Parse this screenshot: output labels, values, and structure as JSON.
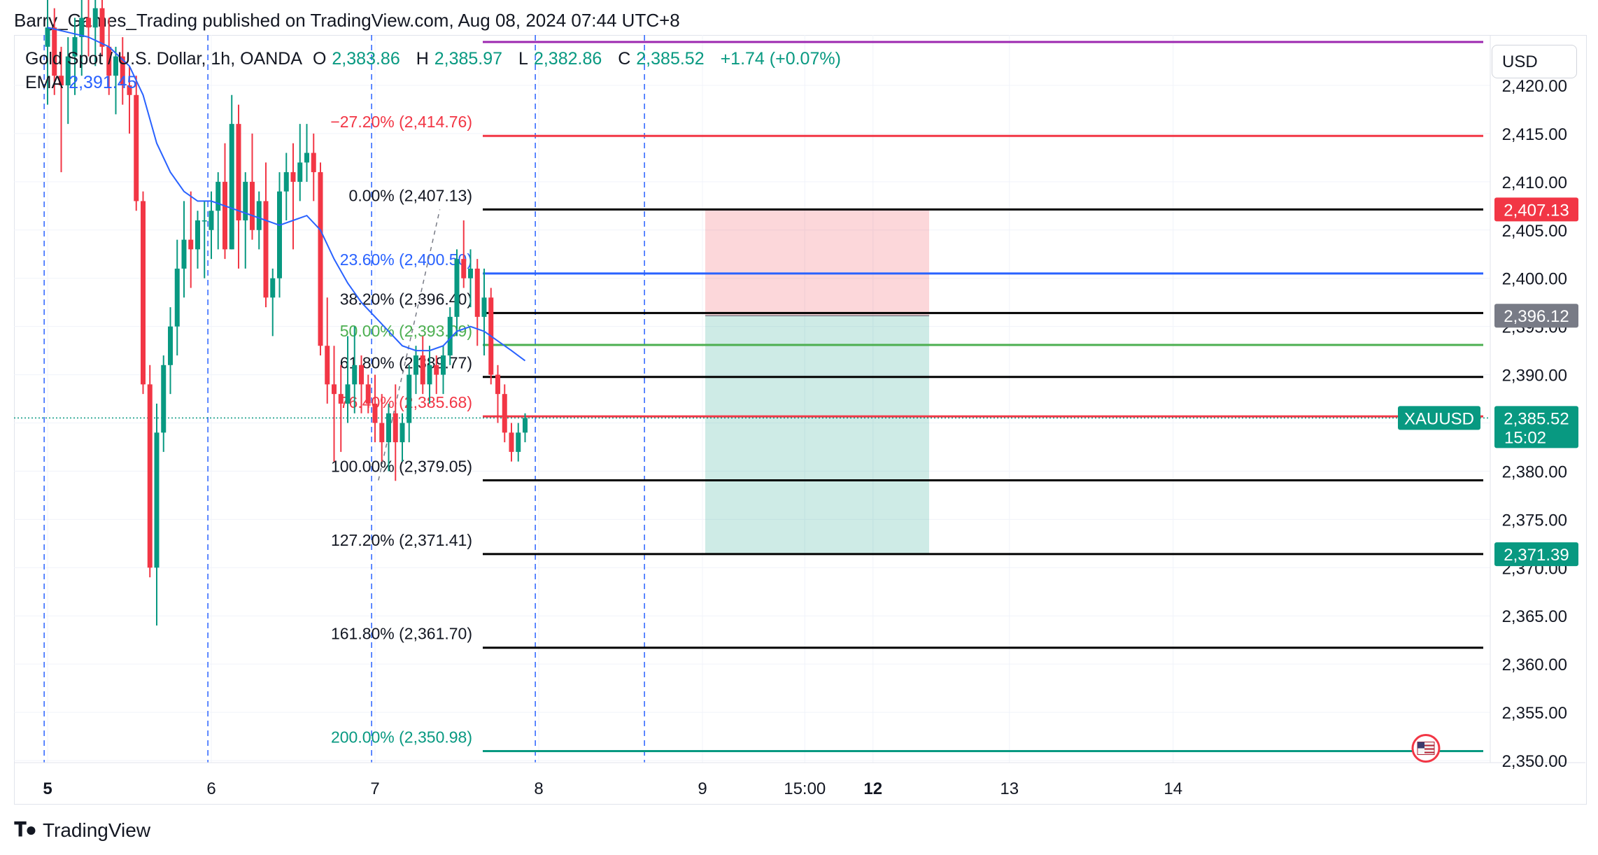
{
  "header": {
    "published_line": "Barry_Games_Trading published on TradingView.com, Aug 08, 2024 07:44 UTC+8"
  },
  "legend": {
    "symbol_line": "Gold Spot / U.S. Dollar, 1h, OANDA",
    "open_label": "O",
    "open": "2,383.86",
    "high_label": "H",
    "high": "2,385.97",
    "low_label": "L",
    "low": "2,382.86",
    "close_label": "C",
    "close": "2,385.52",
    "change": "+1.74 (+0.07%)",
    "ema_label": "EMA",
    "ema_value": "2,391.45"
  },
  "currency_button": "USD",
  "footer": {
    "logo_text": "TradingView"
  },
  "colors": {
    "up": "#089981",
    "down": "#f23645",
    "ema": "#2962ff",
    "fib_black": "#000000",
    "fib_red": "#f7525f",
    "fib_green": "#4caf50",
    "fib_blue": "#2962ff",
    "fib_teal": "#089981",
    "purple": "#9c27b0",
    "stop_zone": "#f23645",
    "target_zone": "#089981"
  },
  "chart_data": {
    "type": "candlestick",
    "symbol": "XAUUSD",
    "interval": "1h",
    "ylim": [
      2348.0,
      2424.0
    ],
    "y_ticks": [
      "2,350.00",
      "2,355.00",
      "2,360.00",
      "2,365.00",
      "2,370.00",
      "2,375.00",
      "2,380.00",
      "2,385.00",
      "2,390.00",
      "2,395.00",
      "2,400.00",
      "2,405.00",
      "2,410.00",
      "2,415.00",
      "2,420.00"
    ],
    "y_tick_values": [
      2350,
      2355,
      2360,
      2365,
      2370,
      2375,
      2380,
      2385,
      2390,
      2395,
      2400,
      2405,
      2410,
      2415,
      2420
    ],
    "x_ticks": [
      {
        "label": "5",
        "bold": true,
        "bar": 0
      },
      {
        "label": "6",
        "bold": false,
        "bar": 24
      },
      {
        "label": "7",
        "bold": false,
        "bar": 48
      },
      {
        "label": "8",
        "bold": false,
        "bar": 72
      },
      {
        "label": "9",
        "bold": false,
        "bar": 96
      },
      {
        "label": "15:00",
        "bold": false,
        "bar": 111
      },
      {
        "label": "12",
        "bold": true,
        "bar": 121
      },
      {
        "label": "13",
        "bold": false,
        "bar": 141
      },
      {
        "label": "14",
        "bold": false,
        "bar": 165
      }
    ],
    "session_lines_bar": [
      -0.5,
      23.5,
      47.5,
      71.5
    ],
    "candles": [
      [
        2424,
        2430,
        2418,
        2426
      ],
      [
        2426,
        2428,
        2419,
        2421
      ],
      [
        2421,
        2424,
        2411,
        2420
      ],
      [
        2420,
        2425,
        2416,
        2423
      ],
      [
        2423,
        2427,
        2419,
        2425
      ],
      [
        2425,
        2429,
        2421,
        2427
      ],
      [
        2427,
        2431,
        2423,
        2426
      ],
      [
        2426,
        2429,
        2422,
        2428
      ],
      [
        2428,
        2430,
        2423,
        2424
      ],
      [
        2424,
        2427,
        2419,
        2421
      ],
      [
        2421,
        2424,
        2417,
        2423
      ],
      [
        2423,
        2425,
        2418,
        2420
      ],
      [
        2420,
        2422,
        2415,
        2419
      ],
      [
        2419,
        2421,
        2407,
        2408
      ],
      [
        2408,
        2409,
        2388,
        2389
      ],
      [
        2389,
        2391,
        2369,
        2370
      ],
      [
        2370,
        2387,
        2364,
        2384
      ],
      [
        2384,
        2392,
        2382,
        2391
      ],
      [
        2391,
        2397,
        2388,
        2395
      ],
      [
        2395,
        2404,
        2392,
        2401
      ],
      [
        2401,
        2408,
        2398,
        2404
      ],
      [
        2404,
        2409,
        2399,
        2403
      ],
      [
        2403,
        2407,
        2401,
        2406
      ],
      [
        2406,
        2408,
        2400,
        2406
      ],
      [
        2405,
        2409,
        2402,
        2407
      ],
      [
        2407,
        2411,
        2403,
        2410
      ],
      [
        2410,
        2414,
        2402,
        2403
      ],
      [
        2403,
        2419,
        2403,
        2416
      ],
      [
        2416,
        2418,
        2401,
        2406
      ],
      [
        2406,
        2411,
        2401,
        2410
      ],
      [
        2410,
        2415,
        2404,
        2405
      ],
      [
        2405,
        2409,
        2403,
        2408
      ],
      [
        2408,
        2412,
        2397,
        2398
      ],
      [
        2398,
        2401,
        2394,
        2400
      ],
      [
        2400,
        2411,
        2398,
        2409
      ],
      [
        2409,
        2413,
        2406,
        2411
      ],
      [
        2411,
        2414,
        2403,
        2410
      ],
      [
        2410,
        2416,
        2408,
        2412
      ],
      [
        2412,
        2416,
        2410,
        2413
      ],
      [
        2413,
        2415,
        2408,
        2411
      ],
      [
        2411,
        2412,
        2392,
        2393
      ],
      [
        2393,
        2398,
        2387,
        2389
      ],
      [
        2389,
        2393,
        2381,
        2388
      ],
      [
        2388,
        2391,
        2382,
        2387
      ],
      [
        2387,
        2394,
        2385,
        2389
      ],
      [
        2389,
        2395,
        2386,
        2391
      ],
      [
        2391,
        2392,
        2386,
        2389
      ],
      [
        2389,
        2390,
        2386,
        2387
      ],
      [
        2387,
        2390,
        2383,
        2385
      ],
      [
        2385,
        2388,
        2381,
        2383
      ],
      [
        2383,
        2387,
        2380,
        2386
      ],
      [
        2386,
        2389,
        2379,
        2383
      ],
      [
        2383,
        2386,
        2381,
        2385
      ],
      [
        2385,
        2391,
        2383,
        2390
      ],
      [
        2390,
        2393,
        2388,
        2392
      ],
      [
        2392,
        2394,
        2388,
        2389
      ],
      [
        2389,
        2393,
        2387,
        2391
      ],
      [
        2391,
        2392,
        2388,
        2390
      ],
      [
        2390,
        2393,
        2388,
        2392
      ],
      [
        2392,
        2397,
        2391,
        2396
      ],
      [
        2396,
        2403,
        2394,
        2402
      ],
      [
        2402,
        2406,
        2399,
        2400
      ],
      [
        2400,
        2403,
        2397,
        2401
      ],
      [
        2401,
        2402,
        2393,
        2396
      ],
      [
        2396,
        2401,
        2392,
        2398
      ],
      [
        2398,
        2399,
        2389,
        2390
      ],
      [
        2390,
        2391,
        2385,
        2388
      ],
      [
        2388,
        2389,
        2383,
        2384
      ],
      [
        2384,
        2385,
        2381,
        2382
      ],
      [
        2382,
        2385,
        2381,
        2384
      ],
      [
        2384,
        2386,
        2383,
        2385.52
      ]
    ],
    "ema": [
      [
        0,
        2426
      ],
      [
        3,
        2425.5
      ],
      [
        6,
        2425
      ],
      [
        9,
        2424
      ],
      [
        12,
        2422
      ],
      [
        14,
        2419
      ],
      [
        16,
        2414
      ],
      [
        18,
        2411
      ],
      [
        20,
        2409
      ],
      [
        22,
        2408
      ],
      [
        24,
        2408
      ],
      [
        26,
        2407.5
      ],
      [
        28,
        2407
      ],
      [
        30,
        2406.5
      ],
      [
        32,
        2406
      ],
      [
        34,
        2405.5
      ],
      [
        36,
        2406
      ],
      [
        38,
        2406.5
      ],
      [
        40,
        2405
      ],
      [
        42,
        2402
      ],
      [
        44,
        2399.5
      ],
      [
        46,
        2397.5
      ],
      [
        48,
        2396
      ],
      [
        50,
        2394.5
      ],
      [
        52,
        2393
      ],
      [
        54,
        2392.5
      ],
      [
        56,
        2392.5
      ],
      [
        58,
        2393
      ],
      [
        60,
        2394.5
      ],
      [
        62,
        2395
      ],
      [
        64,
        2394.5
      ],
      [
        66,
        2393.5
      ],
      [
        68,
        2392.5
      ],
      [
        70,
        2391.45
      ]
    ],
    "fib_levels": [
      {
        "label": "−27.20% (2,414.76)",
        "value": 2414.76,
        "color": "#f23645",
        "label_color": "#f23645"
      },
      {
        "label": "0.00% (2,407.13)",
        "value": 2407.13,
        "color": "#000000",
        "label_color": "#131722"
      },
      {
        "label": "23.60% (2,400.50)",
        "value": 2400.5,
        "color": "#2962ff",
        "label_color": "#2962ff"
      },
      {
        "label": "38.20% (2,396.40)",
        "value": 2396.4,
        "color": "#000000",
        "label_color": "#131722"
      },
      {
        "label": "50.00% (2,393.09)",
        "value": 2393.09,
        "color": "#4caf50",
        "label_color": "#4caf50"
      },
      {
        "label": "61.80% (2,389.77)",
        "value": 2389.77,
        "color": "#000000",
        "label_color": "#131722"
      },
      {
        "label": "76.40% (2,385.68)",
        "value": 2385.68,
        "color": "#f23645",
        "label_color": "#f23645"
      },
      {
        "label": "100.00% (2,379.05)",
        "value": 2379.05,
        "color": "#000000",
        "label_color": "#131722"
      },
      {
        "label": "127.20% (2,371.41)",
        "value": 2371.41,
        "color": "#000000",
        "label_color": "#131722"
      },
      {
        "label": "161.80% (2,361.70)",
        "value": 2361.7,
        "color": "#000000",
        "label_color": "#131722"
      },
      {
        "label": "200.00% (2,350.98)",
        "value": 2350.98,
        "color": "#089981",
        "label_color": "#089981"
      }
    ],
    "top_line_value": 2424.0,
    "position": {
      "entry": 2396.12,
      "stop": 2407.13,
      "target": 2371.39,
      "bar_start": 72.5,
      "bar_end": 108.5
    },
    "price_badges": [
      {
        "text": "2,407.13",
        "value": 2407.13,
        "color": "#f23645"
      },
      {
        "text": "2,396.12",
        "value": 2396.12,
        "color": "#787b86"
      },
      {
        "text": "2,371.39",
        "value": 2371.39,
        "color": "#089981"
      }
    ],
    "last_price": {
      "symbol": "XAUUSD",
      "text": "2,385.52",
      "countdown": "15:02",
      "value": 2385.52,
      "color": "#089981"
    }
  }
}
